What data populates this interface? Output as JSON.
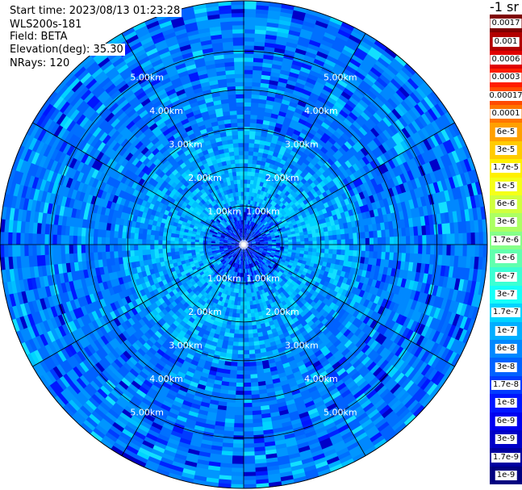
{
  "header": {
    "start_time": "Start time: 2023/08/13 01:23:28",
    "instrument": "WLS200s-181",
    "field": "Field: BETA",
    "elevation": "Elevation(deg): 35.30",
    "nrays": "NRays: 120"
  },
  "colorbar": {
    "unit": "-1 sr",
    "labels": [
      "0.0017",
      "0.001",
      "0.0006",
      "0.0003",
      "0.00017",
      "0.0001",
      "6e-5",
      "3e-5",
      "1.7e-5",
      "1e-5",
      "6e-6",
      "3e-6",
      "1.7e-6",
      "1e-6",
      "6e-7",
      "3e-7",
      "1.7e-7",
      "1e-7",
      "6e-8",
      "3e-8",
      "1.7e-8",
      "1e-8",
      "6e-9",
      "3e-9",
      "1.7e-9",
      "1e-9"
    ],
    "colors": [
      "#7f0000",
      "#b20000",
      "#e00000",
      "#ff1d00",
      "#ff4a00",
      "#ff7500",
      "#ffa000",
      "#ffcb00",
      "#fff000",
      "#f5ff18",
      "#d0ff3e",
      "#abff63",
      "#86ff89",
      "#61ffae",
      "#3cffd3",
      "#16fff8",
      "#00d4ff",
      "#00aeff",
      "#0088ff",
      "#0062ff",
      "#003cff",
      "#0016ff",
      "#0000f0",
      "#0000c8",
      "#0000a0",
      "#000080"
    ]
  },
  "chart_data": {
    "type": "heatmap",
    "projection": "polar PPI",
    "field": "BETA",
    "elevation_deg": 35.3,
    "n_rays": 120,
    "range_rings_km": [
      1,
      2,
      3,
      4,
      5
    ],
    "ring_labels": [
      "1.00km",
      "2.00km",
      "3.00km",
      "4.00km",
      "5.00km"
    ],
    "max_range_km": 6.3,
    "azimuth_lines_deg": [
      0,
      30,
      60,
      90,
      120,
      150,
      180,
      210,
      240,
      270,
      300,
      330
    ],
    "color_scale": "log",
    "value_range": [
      1e-09,
      0.0017
    ],
    "radial_profile": [
      {
        "range_km": 0.5,
        "typical_value": "6e-9 to 1e-8"
      },
      {
        "range_km": 1.5,
        "typical_value": "6e-8 to 1e-7"
      },
      {
        "range_km": 2.5,
        "typical_value": "1e-7 to 1.7e-7"
      },
      {
        "range_km": 3.5,
        "typical_value": "3e-8 to 1e-7"
      },
      {
        "range_km": 4.5,
        "typical_value": "3e-8 to 1e-7"
      },
      {
        "range_km": 5.5,
        "typical_value": "1.7e-8 to 1e-7"
      }
    ]
  }
}
